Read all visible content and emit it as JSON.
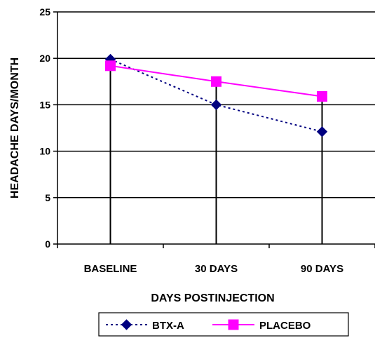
{
  "chart_data": {
    "type": "line",
    "title": "",
    "xlabel": "DAYS POSTINJECTION",
    "ylabel": "HEADACHE DAYS/MONTH",
    "categories": [
      "BASELINE",
      "30 DAYS",
      "90 DAYS"
    ],
    "ylim": [
      0,
      25
    ],
    "yticks": [
      0,
      5,
      10,
      15,
      20,
      25
    ],
    "grid": true,
    "legend_position": "bottom",
    "series": [
      {
        "name": "BTX-A",
        "values": [
          19.9,
          15.0,
          12.1
        ],
        "color": "#000080",
        "line_style": "dotted",
        "marker": "diamond"
      },
      {
        "name": "PLACEBO",
        "values": [
          19.2,
          17.5,
          15.9
        ],
        "color": "#ff00ff",
        "line_style": "solid",
        "marker": "square"
      }
    ]
  }
}
